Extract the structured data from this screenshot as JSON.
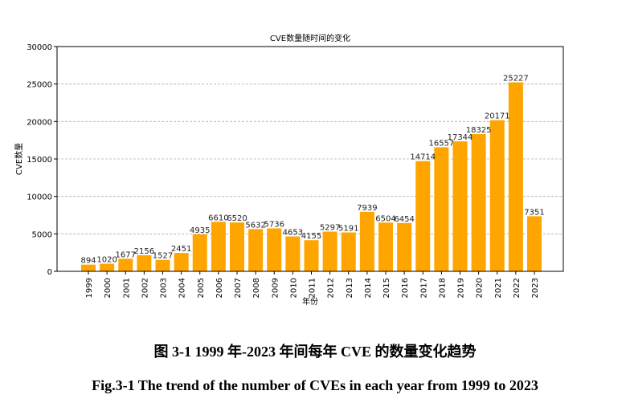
{
  "chart_data": {
    "type": "bar",
    "title": "CVE数量随时间的变化",
    "xlabel": "年份",
    "ylabel": "CVE数量",
    "ylim": [
      0,
      30000
    ],
    "yticks": [
      0,
      5000,
      10000,
      15000,
      20000,
      25000,
      30000
    ],
    "grid": "horizontal dashed",
    "color": "#FFA500",
    "categories": [
      "1999",
      "2000",
      "2001",
      "2002",
      "2003",
      "2004",
      "2005",
      "2006",
      "2007",
      "2008",
      "2009",
      "2010",
      "2011",
      "2012",
      "2013",
      "2014",
      "2015",
      "2016",
      "2017",
      "2018",
      "2019",
      "2020",
      "2021",
      "2022",
      "2023"
    ],
    "values": [
      894,
      1020,
      1677,
      2156,
      1527,
      2451,
      4935,
      6610,
      6520,
      5632,
      5736,
      4653,
      4155,
      5297,
      5191,
      7939,
      6504,
      6454,
      14714,
      16557,
      17344,
      18325,
      20171,
      25227,
      7351
    ]
  },
  "captions": {
    "zh": "图  3-1 1999 年-2023 年间每年 CVE 的数量变化趋势",
    "en": "Fig.3-1 The trend of the number of CVEs in each year from 1999 to 2023"
  }
}
